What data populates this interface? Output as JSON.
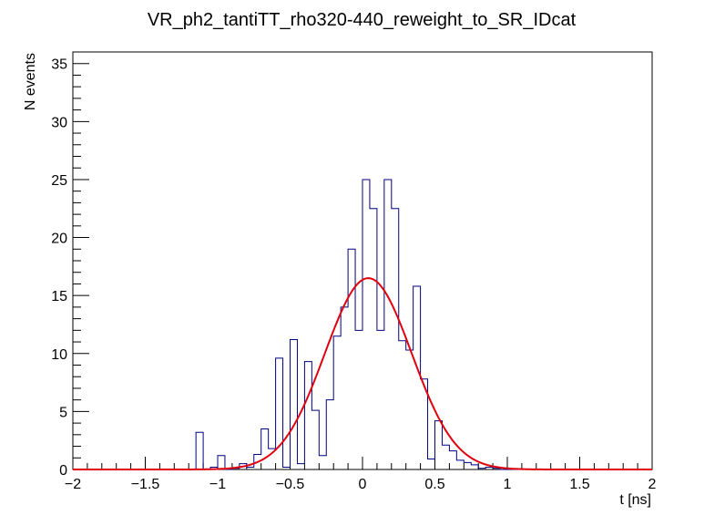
{
  "chart_data": {
    "type": "histogram",
    "title": "VR_ph2_tantiTT_rho320-440_reweight_to_SR_IDcat",
    "xlabel": "t [ns]",
    "ylabel": "N events",
    "xlim": [
      -2,
      2
    ],
    "ylim": [
      0,
      36
    ],
    "bin_width": 0.05,
    "x_ticks": [
      -2,
      -1.5,
      -1,
      -0.5,
      0,
      0.5,
      1,
      1.5,
      2
    ],
    "x_tick_labels": [
      "−2",
      "−1.5",
      "−1",
      "−0.5",
      "0",
      "0.5",
      "1",
      "1.5",
      "2"
    ],
    "y_ticks": [
      0,
      5,
      10,
      15,
      20,
      25,
      30,
      35
    ],
    "y_tick_labels": [
      "0",
      "5",
      "10",
      "15",
      "20",
      "25",
      "30",
      "35"
    ],
    "series": [
      {
        "name": "histogram",
        "style": "step",
        "color": "#000080",
        "bin_edges_start": -2,
        "values": [
          0,
          0,
          0,
          0,
          0,
          0,
          0,
          0,
          0,
          0,
          0,
          0,
          0,
          0,
          0,
          0,
          0,
          3.2,
          0,
          0.2,
          1.2,
          0,
          0.1,
          0.5,
          0.2,
          1.3,
          3.5,
          1.8,
          9.6,
          0.2,
          11.2,
          0.5,
          9.3,
          5.1,
          1.2,
          6,
          11.5,
          14,
          19,
          12,
          25,
          22.5,
          12,
          25,
          22.5,
          11.1,
          10.3,
          15.8,
          7.8,
          0.9,
          4.2,
          2.1,
          1.6,
          0.8,
          0.6,
          0.4,
          0.1,
          0.2,
          0.1,
          0,
          0,
          0,
          0,
          0,
          0,
          0,
          0,
          0,
          0,
          0,
          0,
          0,
          0,
          0,
          0,
          0,
          0,
          0,
          0,
          0
        ],
        "values_note": "placeholder"
      },
      {
        "name": "fit",
        "style": "curve",
        "color": "#e0000d",
        "function": "gaussian",
        "amplitude": 16.5,
        "mean": 0.04,
        "sigma": 0.3
      }
    ]
  }
}
